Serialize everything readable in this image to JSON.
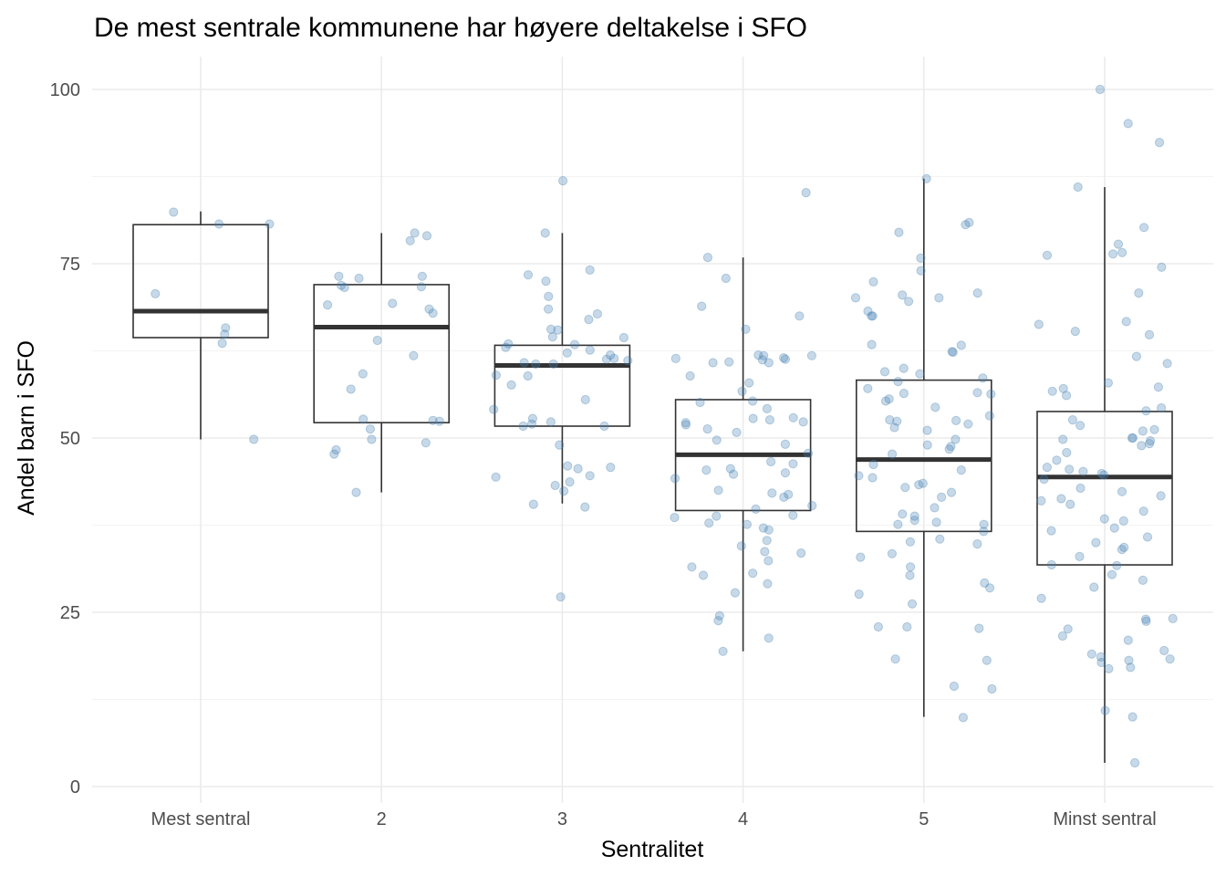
{
  "chart_data": {
    "type": "boxplot",
    "title": "De mest sentrale kommunene har høyere deltakelse i SFO",
    "xlabel": "Sentralitet",
    "ylabel": "Andel barn i SFO",
    "ylim": [
      0,
      100
    ],
    "yticks": [
      0,
      25,
      50,
      75,
      100
    ],
    "grid": true,
    "categories": [
      "Mest sentral",
      "2",
      "3",
      "4",
      "5",
      "Minst sentral"
    ],
    "boxes": [
      {
        "category": "Mest sentral",
        "lower_whisker": 49.8,
        "q1": 64.4,
        "median": 68.2,
        "q3": 80.6,
        "upper_whisker": 82.5
      },
      {
        "category": "2",
        "lower_whisker": 42.2,
        "q1": 52.2,
        "median": 65.9,
        "q3": 72.0,
        "upper_whisker": 79.4
      },
      {
        "category": "3",
        "lower_whisker": 40.6,
        "q1": 51.7,
        "median": 60.4,
        "q3": 63.3,
        "upper_whisker": 79.4
      },
      {
        "category": "4",
        "lower_whisker": 19.4,
        "q1": 39.6,
        "median": 47.6,
        "q3": 55.5,
        "upper_whisker": 75.9
      },
      {
        "category": "5",
        "lower_whisker": 10.0,
        "q1": 36.6,
        "median": 46.9,
        "q3": 58.3,
        "upper_whisker": 87.2
      },
      {
        "category": "Minst sentral",
        "lower_whisker": 3.4,
        "q1": 31.8,
        "median": 44.4,
        "q3": 53.8,
        "upper_whisker": 86.0
      }
    ],
    "points": [
      [
        63.6,
        82.4,
        80.7,
        80.7,
        65.8,
        64.9,
        70.7,
        49.8
      ],
      [
        78.3,
        79.0,
        79.4,
        72.9,
        73.2,
        73.2,
        69.3,
        71.6,
        71.9,
        71.7,
        67.9,
        68.5,
        69.1,
        64.0,
        61.8,
        59.2,
        57.0,
        52.7,
        52.4,
        52.5,
        51.3,
        49.8,
        49.3,
        48.3,
        47.7,
        42.2
      ],
      [
        79.4,
        86.9,
        61.1,
        65.5,
        67.8,
        60.8,
        60.6,
        61.4,
        61.3,
        60.6,
        62.2,
        61.9,
        62.6,
        63.5,
        63.4,
        63.0,
        67.0,
        68.5,
        74.1,
        73.4,
        72.5,
        70.3,
        65.6,
        64.4,
        64.5,
        59.0,
        58.9,
        57.6,
        55.5,
        54.1,
        52.8,
        52.0,
        52.3,
        51.7,
        51.7,
        49.0,
        46.0,
        45.8,
        45.6,
        44.6,
        44.4,
        43.7,
        43.2,
        42.4,
        40.1,
        40.5,
        27.2
      ],
      [
        85.2,
        68.9,
        65.6,
        67.5,
        61.9,
        61.4,
        61.2,
        61.8,
        60.9,
        61.3,
        60.8,
        60.8,
        61.5,
        61.8,
        56.7,
        55.1,
        55.3,
        54.2,
        52.9,
        52.8,
        52.6,
        52.2,
        52.3,
        51.9,
        51.3,
        50.8,
        49.1,
        49.7,
        46.3,
        45.4,
        45.0,
        45.6,
        44.8,
        44.2,
        42.5,
        42.1,
        41.9,
        41.5,
        40.3,
        39.8,
        38.9,
        38.8,
        38.6,
        37.8,
        37.6,
        37.1,
        36.8,
        35.3,
        34.5,
        33.7,
        33.5,
        32.4,
        31.5,
        30.6,
        30.3,
        29.1,
        27.8,
        23.8,
        21.3,
        19.4,
        72.9,
        75.9,
        24.5,
        58.9,
        57.9,
        47.8,
        46.6
      ],
      [
        87.2,
        80.9,
        80.6,
        79.5,
        75.8,
        74.0,
        72.4,
        70.8,
        70.5,
        70.1,
        70.1,
        69.6,
        68.2,
        67.5,
        67.5,
        63.4,
        63.3,
        62.3,
        62.4,
        60.0,
        59.5,
        59.2,
        58.6,
        58.1,
        57.1,
        56.5,
        56.4,
        56.3,
        55.3,
        55.6,
        54.4,
        53.2,
        52.6,
        52.5,
        52.4,
        52.0,
        51.5,
        51.1,
        49.8,
        49.0,
        48.8,
        48.4,
        47.7,
        46.2,
        45.4,
        44.6,
        44.3,
        43.5,
        43.3,
        42.9,
        42.2,
        41.5,
        40.0,
        39.1,
        38.8,
        38.2,
        37.9,
        37.6,
        37.6,
        36.6,
        35.5,
        35.1,
        34.8,
        33.4,
        32.9,
        31.5,
        30.3,
        29.2,
        28.5,
        27.6,
        26.2,
        22.9,
        22.9,
        22.7,
        18.3,
        18.1,
        14.4,
        14.0,
        9.9
      ],
      [
        100,
        95.1,
        92.4,
        86.0,
        80.2,
        77.8,
        76.6,
        76.4,
        76.2,
        74.5,
        70.8,
        66.3,
        66.7,
        65.3,
        64.8,
        61.7,
        60.7,
        57.9,
        57.3,
        57.1,
        56.7,
        56.1,
        54.3,
        53.9,
        52.6,
        51.8,
        51.2,
        51.0,
        50.0,
        50.0,
        49.8,
        49.6,
        49.2,
        48.9,
        47.9,
        46.8,
        45.8,
        45.5,
        45.2,
        44.9,
        44.7,
        44.1,
        42.8,
        42.3,
        41.7,
        41.3,
        41.0,
        40.5,
        39.5,
        38.4,
        38.1,
        37.1,
        36.7,
        35.8,
        35.0,
        34.3,
        34.0,
        33.0,
        31.8,
        31.7,
        30.4,
        29.6,
        28.6,
        27.0,
        24.1,
        24.0,
        23.7,
        22.6,
        21.6,
        21.0,
        19.5,
        19.0,
        18.6,
        18.3,
        18.1,
        17.8,
        17.1,
        16.9,
        10.9,
        10.0,
        3.4
      ]
    ]
  }
}
